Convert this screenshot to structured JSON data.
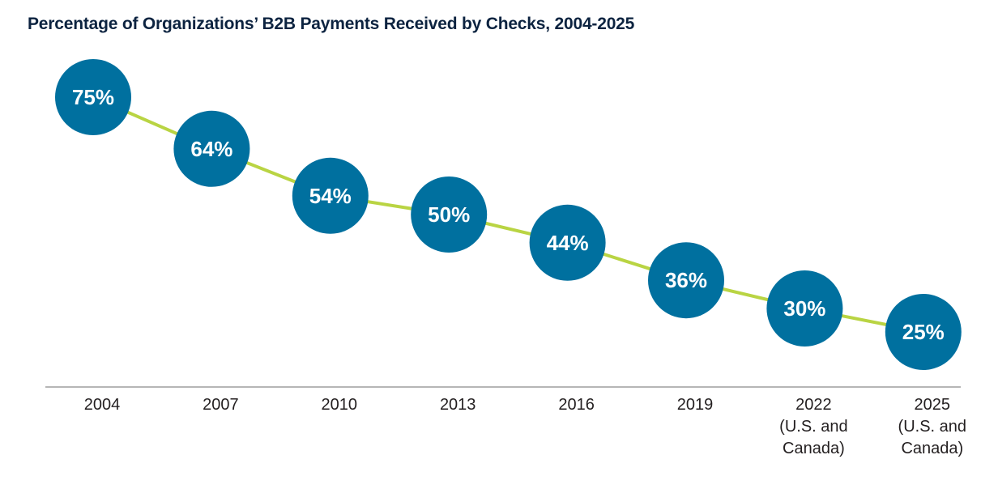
{
  "chart_data": {
    "type": "line",
    "title": "Percentage of Organizations’ B2B Payments Received by Checks, 2004-2025",
    "xlabel": "",
    "ylabel": "",
    "categories": [
      [
        "2004"
      ],
      [
        "2007"
      ],
      [
        "2010"
      ],
      [
        "2013"
      ],
      [
        "2016"
      ],
      [
        "2019"
      ],
      [
        "2022",
        "(U.S. and",
        "Canada)"
      ],
      [
        "2025",
        "(U.S. and",
        "Canada)"
      ]
    ],
    "values": [
      75,
      64,
      54,
      50,
      44,
      36,
      30,
      25
    ],
    "data_labels": [
      "75%",
      "64%",
      "54%",
      "50%",
      "44%",
      "36%",
      "30%",
      "25%"
    ],
    "unit": "%",
    "grid": false,
    "legend": "none",
    "colors": {
      "marker": "#00709f",
      "line": "#b9d443",
      "axis": "#8a8a8a",
      "title": "#0c2340",
      "label_text": "#ffffff",
      "tick_text": "#231f20"
    }
  }
}
